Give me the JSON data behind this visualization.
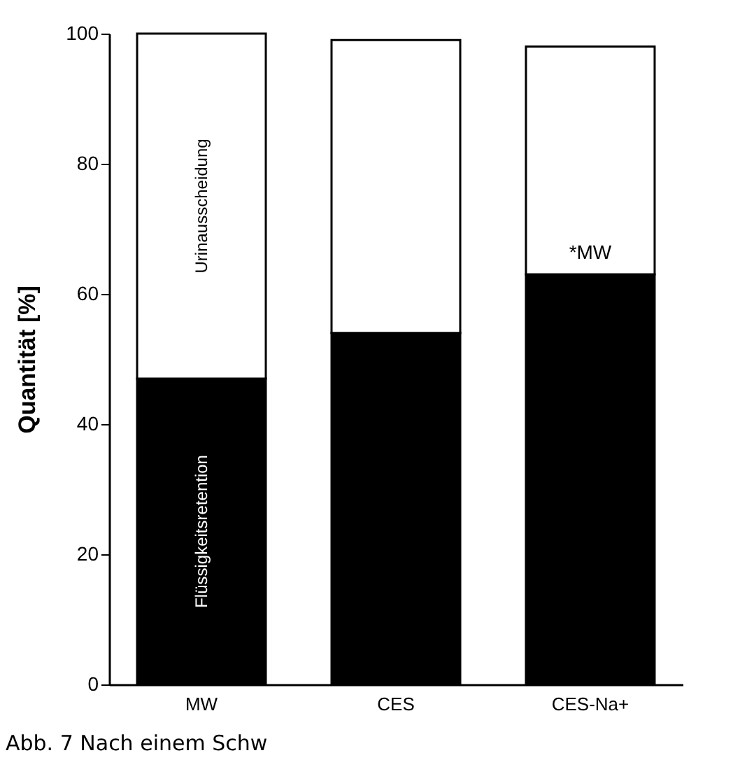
{
  "chart_data": {
    "type": "bar",
    "stacked": true,
    "ylabel": "Quantität [%]",
    "categories": [
      "MW",
      "CES",
      "CES-Na+"
    ],
    "series": [
      {
        "name": "Flüssigkeitsretention",
        "color": "#000000",
        "values": [
          47,
          54,
          63
        ]
      },
      {
        "name": "Urinausscheidung",
        "color": "#ffffff",
        "values": [
          53,
          45,
          35
        ]
      }
    ],
    "ylim": [
      0,
      100
    ],
    "yticks": [
      0,
      20,
      40,
      60,
      80,
      100
    ],
    "grid": false,
    "legend": false,
    "annotations": [
      "*MW",
      "Abb. 7 Nach einem Schw"
    ]
  }
}
